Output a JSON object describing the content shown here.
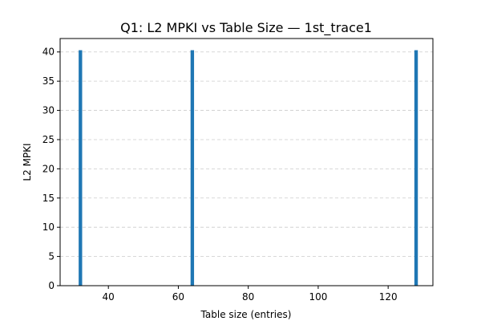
{
  "chart_data": {
    "type": "bar",
    "title": "Q1: L2 MPKI vs Table Size — 1st_trace1",
    "xlabel": "Table size (entries)",
    "ylabel": "L2 MPKI",
    "x": [
      32,
      64,
      128
    ],
    "values": [
      40.3,
      40.3,
      40.3
    ],
    "bar_width": 1,
    "xlim": [
      26.2,
      132.8
    ],
    "ylim": [
      0,
      42.3
    ],
    "xticks": [
      40,
      60,
      80,
      100,
      120
    ],
    "yticks": [
      0,
      5,
      10,
      15,
      20,
      25,
      30,
      35,
      40
    ],
    "grid": "y-dashed",
    "bar_color": "#1f77b4",
    "grid_color": "#cccccc"
  }
}
